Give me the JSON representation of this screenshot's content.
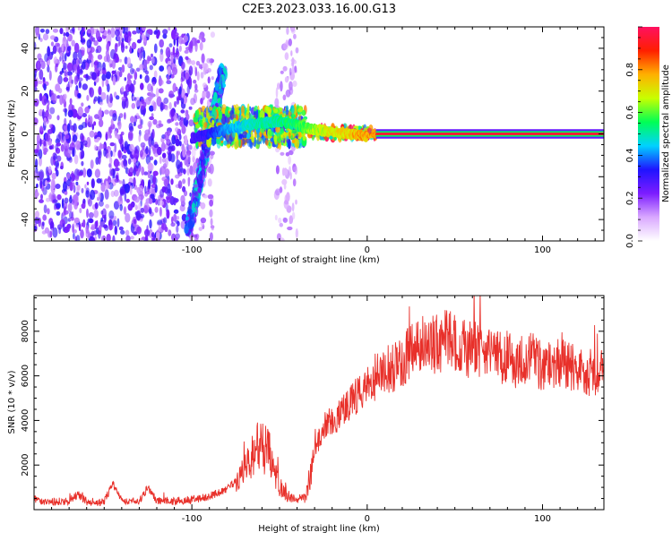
{
  "title": "C2E3.2023.033.16.00.G13",
  "chart_data": [
    {
      "type": "heatmap",
      "xlabel": "Height of straight line (km)",
      "ylabel": "Frequency (Hz)",
      "xlim": [
        -190,
        135
      ],
      "ylim": [
        -50,
        50
      ],
      "xticks": [
        -100,
        0,
        100
      ],
      "yticks": [
        -40,
        -20,
        0,
        20,
        40
      ],
      "colorbar": {
        "label": "Normalized spectral amplitude",
        "range": [
          0.0,
          1.0
        ],
        "ticks": [
          "0.0",
          "0.2",
          "0.4",
          "0.6",
          "0.8"
        ],
        "tick_values": [
          0.0,
          0.2,
          0.4,
          0.6,
          0.8
        ],
        "colors": [
          "#ffffff",
          "#d9a8ff",
          "#7c1cff",
          "#1f14ff",
          "#00d2ff",
          "#00ff55",
          "#c8ff00",
          "#ffb000",
          "#ff1f00",
          "#ff1060"
        ]
      },
      "regions": [
        {
          "x": [
            -190,
            -100
          ],
          "freq": [
            -50,
            50
          ],
          "level": 0.22,
          "pattern": "scattered speckle"
        },
        {
          "x": [
            -100,
            -88
          ],
          "freq": [
            -50,
            50
          ],
          "level": 0.14,
          "pattern": "scattered speckle"
        },
        {
          "x": [
            -52,
            -40
          ],
          "freq": [
            -50,
            50
          ],
          "level": 0.12,
          "pattern": "scattered speckle"
        },
        {
          "x": [
            -102,
            -82
          ],
          "freq": [
            -45,
            30
          ],
          "level": 0.35,
          "pattern": "diagonal streak"
        },
        {
          "x": [
            -98,
            -35
          ],
          "freq": [
            -5,
            12
          ],
          "level": 0.55,
          "pattern": "rising band"
        },
        {
          "x": [
            -35,
            5
          ],
          "freq": [
            -2,
            3
          ],
          "level": 0.75,
          "pattern": "narrow band"
        },
        {
          "x": [
            5,
            135
          ],
          "freq": [
            -1,
            1
          ],
          "level": 0.95,
          "pattern": "steady line"
        }
      ],
      "ridge_x": [
        -100,
        -90,
        -80,
        -70,
        -60,
        -50,
        -40,
        -30,
        -20,
        -10,
        0,
        10,
        50,
        100,
        135
      ],
      "ridge_freq": [
        -2,
        0,
        2,
        4,
        5,
        6,
        4,
        2,
        1,
        0,
        -1,
        0,
        0,
        0,
        0
      ],
      "ridge_level": [
        0.3,
        0.35,
        0.45,
        0.5,
        0.55,
        0.55,
        0.6,
        0.7,
        0.75,
        0.8,
        0.85,
        0.9,
        0.95,
        0.95,
        0.95
      ]
    },
    {
      "type": "line",
      "xlabel": "Height of straight line (km)",
      "ylabel": "SNR (10 * v/v)",
      "xlim": [
        -190,
        135
      ],
      "ylim": [
        0,
        9600
      ],
      "xticks": [
        -100,
        0,
        100
      ],
      "yticks": [
        2000,
        4000,
        6000,
        8000
      ],
      "color": "#e8302a",
      "x": [
        -190,
        -180,
        -170,
        -165,
        -160,
        -150,
        -145,
        -140,
        -130,
        -125,
        -120,
        -110,
        -100,
        -90,
        -80,
        -75,
        -70,
        -65,
        -60,
        -55,
        -50,
        -45,
        -40,
        -35,
        -30,
        -25,
        -20,
        -15,
        -10,
        -5,
        0,
        5,
        10,
        15,
        20,
        25,
        30,
        35,
        40,
        45,
        50,
        55,
        60,
        65,
        70,
        75,
        80,
        85,
        90,
        95,
        100,
        105,
        110,
        115,
        120,
        125,
        130,
        135
      ],
      "y": [
        450,
        350,
        380,
        700,
        360,
        330,
        1200,
        420,
        360,
        1000,
        400,
        380,
        450,
        600,
        900,
        1300,
        1700,
        2400,
        3000,
        2300,
        1100,
        600,
        500,
        550,
        2600,
        3800,
        4000,
        4300,
        4700,
        5200,
        5600,
        6000,
        6400,
        6300,
        6700,
        7100,
        7400,
        7500,
        7300,
        7700,
        7500,
        7300,
        7100,
        7300,
        7000,
        6900,
        6800,
        6600,
        6800,
        6700,
        6500,
        6400,
        6600,
        6500,
        6300,
        6200,
        6000,
        6100
      ]
    }
  ]
}
